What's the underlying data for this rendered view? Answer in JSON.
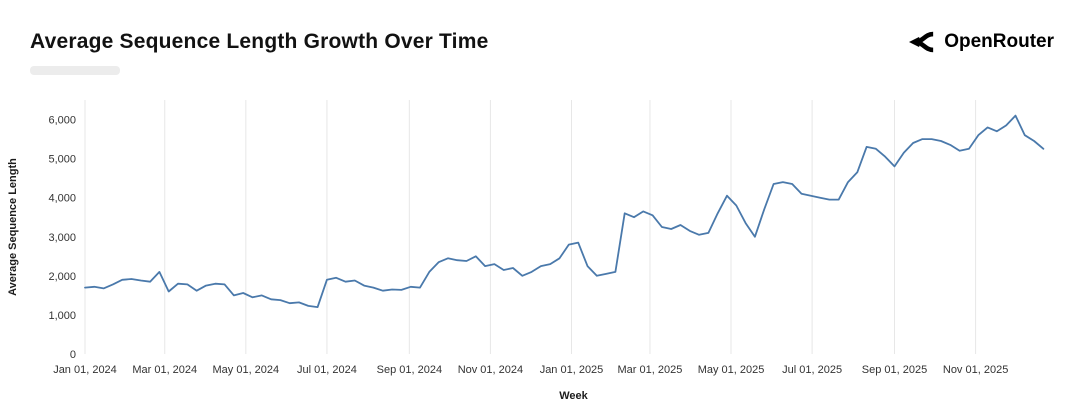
{
  "header": {
    "title": "Average Sequence Length Growth Over Time",
    "brand": "OpenRouter"
  },
  "chart_data": {
    "type": "line",
    "title": "Average Sequence Length Growth Over Time",
    "xlabel": "Week",
    "ylabel": "Average Sequence Length",
    "legend_position": "none",
    "grid": "vertical-only",
    "grid_color": "#e7e7e7",
    "line_color": "#4a79ab",
    "ylim": [
      0,
      6500
    ],
    "x_domain_days": [
      0,
      735
    ],
    "y_ticks": [
      {
        "value": 0,
        "label": "0"
      },
      {
        "value": 1000,
        "label": "1,000"
      },
      {
        "value": 2000,
        "label": "2,000"
      },
      {
        "value": 3000,
        "label": "3,000"
      },
      {
        "value": 4000,
        "label": "4,000"
      },
      {
        "value": 5000,
        "label": "5,000"
      },
      {
        "value": 6000,
        "label": "6,000"
      }
    ],
    "x_ticks": [
      {
        "day": 0,
        "label": "Jan 01, 2024"
      },
      {
        "day": 60,
        "label": "Mar 01, 2024"
      },
      {
        "day": 121,
        "label": "May 01, 2024"
      },
      {
        "day": 182,
        "label": "Jul 01, 2024"
      },
      {
        "day": 244,
        "label": "Sep 01, 2024"
      },
      {
        "day": 305,
        "label": "Nov 01, 2024"
      },
      {
        "day": 366,
        "label": "Jan 01, 2025"
      },
      {
        "day": 425,
        "label": "Mar 01, 2025"
      },
      {
        "day": 486,
        "label": "May 01, 2025"
      },
      {
        "day": 547,
        "label": "Jul 01, 2025"
      },
      {
        "day": 609,
        "label": "Sep 01, 2025"
      },
      {
        "day": 670,
        "label": "Nov 01, 2025"
      }
    ],
    "series": [
      {
        "name": "Average Sequence Length",
        "start": "Jan 01, 2024",
        "week_interval_days": 7,
        "values": [
          1700,
          1720,
          1680,
          1780,
          1900,
          1920,
          1880,
          1850,
          2100,
          1600,
          1800,
          1780,
          1620,
          1750,
          1800,
          1780,
          1500,
          1560,
          1450,
          1500,
          1400,
          1380,
          1300,
          1320,
          1230,
          1200,
          1900,
          1950,
          1850,
          1880,
          1750,
          1700,
          1620,
          1650,
          1640,
          1720,
          1700,
          2100,
          2350,
          2450,
          2400,
          2380,
          2500,
          2250,
          2300,
          2150,
          2200,
          2000,
          2100,
          2250,
          2300,
          2450,
          2800,
          2850,
          2250,
          2000,
          2050,
          2100,
          3600,
          3500,
          3650,
          3550,
          3250,
          3200,
          3300,
          3150,
          3050,
          3100,
          3600,
          4050,
          3800,
          3350,
          3000,
          3700,
          4350,
          4400,
          4350,
          4100,
          4050,
          4000,
          3950,
          3950,
          4400,
          4650,
          5300,
          5250,
          5050,
          4800,
          5150,
          5400,
          5500,
          5500,
          5450,
          5350,
          5200,
          5250,
          5600,
          5800,
          5700,
          5850,
          6100,
          5600,
          5450,
          5250
        ]
      }
    ]
  }
}
